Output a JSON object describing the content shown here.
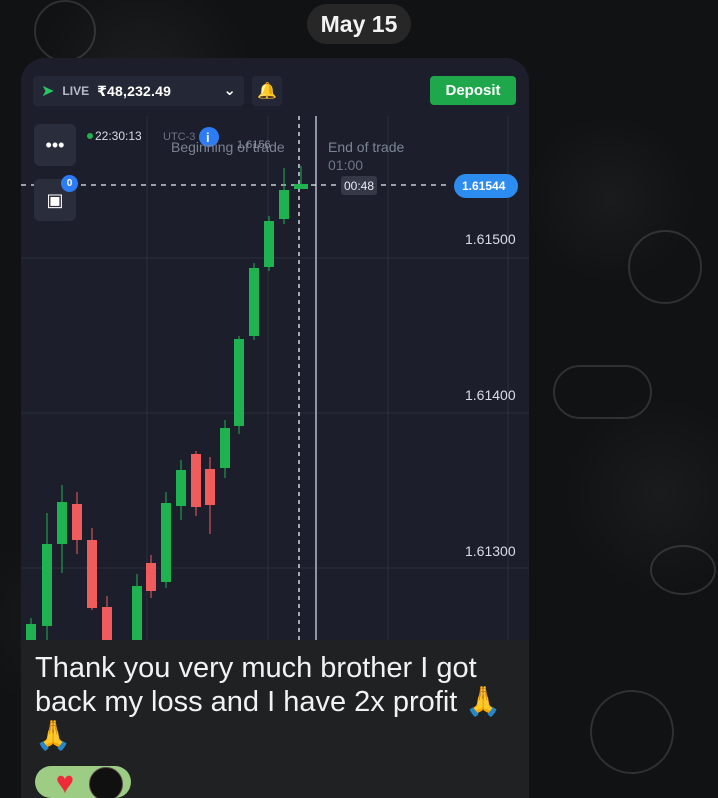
{
  "date": "May 15",
  "trading": {
    "account_label": "LIVE",
    "balance": "₹48,232.49",
    "deposit_label": "Deposit",
    "clock": "22:30:13",
    "timezone": "UTC-3",
    "beginning_label": "Beginning of trade",
    "end_label": "End of trade",
    "end_time": "01:00",
    "countdown": "00:48",
    "trade_strike": "1.6156",
    "current_price": "1.61544",
    "price_labels": [
      "1.61500",
      "1.61400",
      "1.61300"
    ],
    "badge_count": "0"
  },
  "message": {
    "text": "Thank you very much brother I got back my loss and I have 2x profit 🙏🙏"
  },
  "reaction": {
    "emoji": "heart",
    "count": ""
  },
  "colors": {
    "chart_bg": "#1c1f2b",
    "up": "#1fb250",
    "down": "#f05b5b",
    "current": "#2d8cf0",
    "deposit": "#1fa84b"
  }
}
